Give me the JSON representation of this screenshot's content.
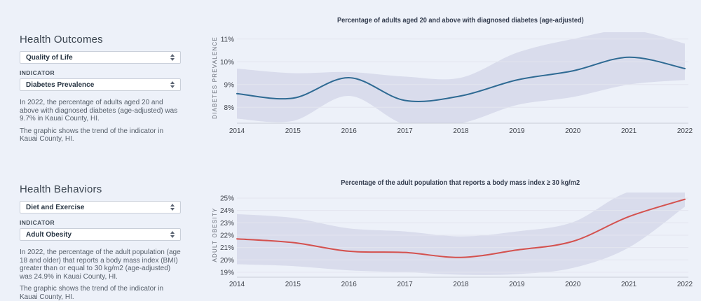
{
  "panels": [
    {
      "title": "Health Outcomes",
      "category_value": "Quality of Life",
      "indicator_label": "INDICATOR",
      "indicator_value": "Diabetes Prevalence",
      "description": "In 2022, the percentage of adults aged 20 and above with diagnosed diabetes (age-adjusted) was 9.7% in Kauai County, HI.",
      "note": "The graphic shows the trend of the indicator in Kauai County, HI."
    },
    {
      "title": "Health Behaviors",
      "category_value": "Diet and Exercise",
      "indicator_label": "INDICATOR",
      "indicator_value": "Adult Obesity",
      "description": "In 2022, the percentage of the adult population (age 18 and older) that reports a body mass index (BMI) greater than or equal to 30 kg/m2 (age-adjusted) was 24.9% in Kauai County, HI.",
      "note": "The graphic shows the trend of the indicator in Kauai County, HI."
    }
  ],
  "chart_data": [
    {
      "type": "line",
      "title": "Percentage of adults aged 20 and above with diagnosed diabetes (age-adjusted)",
      "ylabel": "DIABETES PREVALENCE",
      "x": [
        2014,
        2015,
        2016,
        2017,
        2018,
        2019,
        2020,
        2021,
        2022
      ],
      "series": [
        {
          "name": "Diabetes prevalence trend (Kauai County, HI)",
          "values": [
            8.6,
            8.4,
            9.3,
            8.3,
            8.5,
            9.2,
            9.6,
            10.2,
            9.7
          ],
          "color": "#2e6a93"
        }
      ],
      "band": {
        "name": "confidence-interval",
        "upper": [
          9.7,
          9.5,
          9.55,
          9.35,
          9.3,
          10.4,
          11.0,
          11.4,
          10.8
        ],
        "lower": [
          7.5,
          7.4,
          8.5,
          7.25,
          7.3,
          8.1,
          8.45,
          9.0,
          9.2
        ],
        "color": "#d9dcec"
      },
      "yticks": [
        8,
        9,
        10,
        11
      ],
      "ytick_suffix": "%",
      "ylim": [
        7.3,
        11.3
      ],
      "grid": true,
      "legend": "none"
    },
    {
      "type": "line",
      "title": "Percentage of the adult population that reports a body mass index ≥ 30 kg/m2",
      "ylabel": "ADULT OBESITY",
      "x": [
        2014,
        2015,
        2016,
        2017,
        2018,
        2019,
        2020,
        2021,
        2022
      ],
      "series": [
        {
          "name": "Adult obesity trend (Kauai County, HI)",
          "values": [
            21.7,
            21.4,
            20.7,
            20.6,
            20.2,
            20.8,
            21.5,
            23.5,
            24.9
          ],
          "color": "#d4514e"
        }
      ],
      "band": {
        "name": "confidence-interval",
        "upper": [
          23.7,
          23.4,
          22.55,
          22.3,
          21.9,
          22.3,
          23.05,
          25.5,
          25.65
        ],
        "lower": [
          19.65,
          19.5,
          19.15,
          19.0,
          18.8,
          18.85,
          19.35,
          21.0,
          24.3
        ],
        "color": "#d9dcec"
      },
      "yticks": [
        19,
        20,
        21,
        22,
        23,
        24,
        25
      ],
      "ytick_suffix": "%",
      "ylim": [
        18.6,
        25.45
      ],
      "grid": true,
      "legend": "none"
    }
  ],
  "colors": {
    "background": "#edf1f9",
    "diabetes_line": "#2e6a93",
    "obesity_line": "#d4514e",
    "confidence_band": "#d9dcec",
    "gridline": "#e3e5ef"
  }
}
